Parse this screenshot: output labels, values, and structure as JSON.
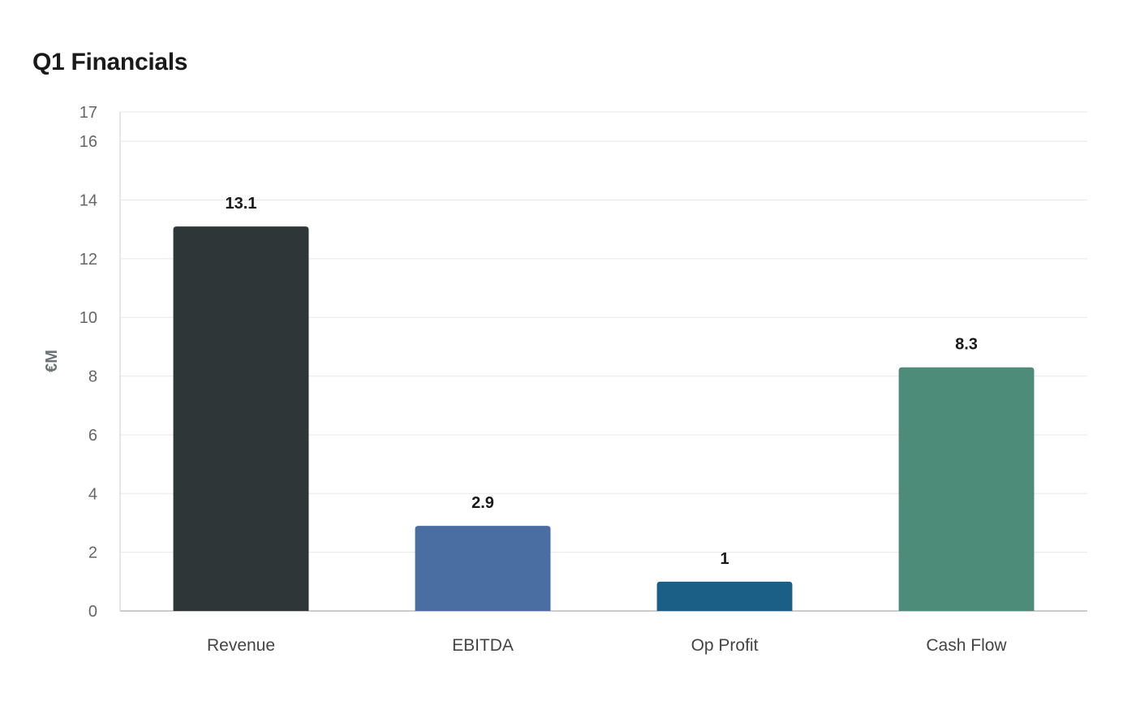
{
  "title": "Q1 Financials",
  "chart_data": {
    "type": "bar",
    "title": "Q1 Financials",
    "categories": [
      "Revenue",
      "EBITDA",
      "Op Profit",
      "Cash Flow"
    ],
    "values": [
      13.1,
      2.9,
      1,
      8.3
    ],
    "data_labels": [
      "13.1",
      "2.9",
      "1",
      "8.3"
    ],
    "colors": [
      "#2e3638",
      "#4a6da2",
      "#1b5f87",
      "#4e8c7a"
    ],
    "xlabel": "",
    "ylabel": "€M",
    "ylim": [
      0,
      17
    ],
    "yticks": [
      0,
      2,
      4,
      6,
      8,
      10,
      12,
      14,
      16,
      17
    ],
    "grid": true,
    "legend": "none"
  }
}
